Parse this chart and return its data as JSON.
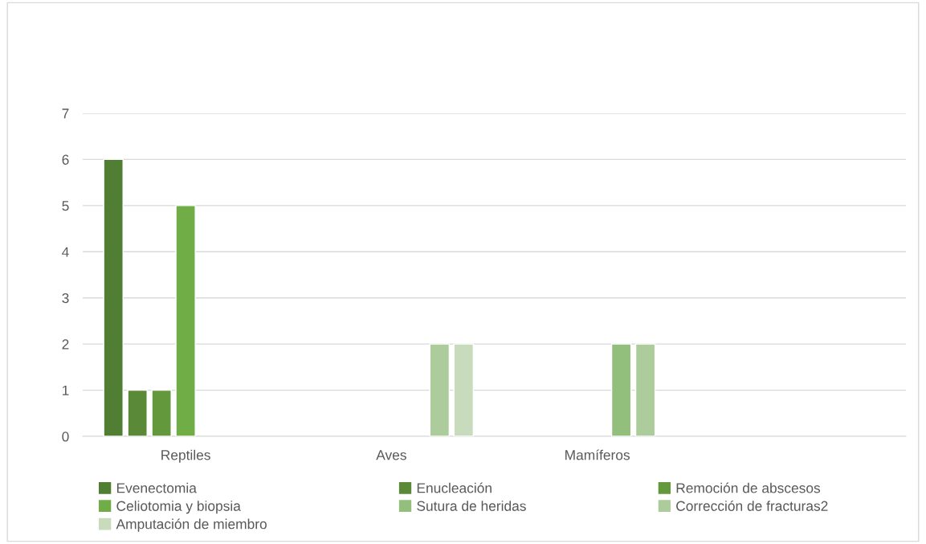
{
  "chart_data": {
    "type": "bar",
    "categories": [
      "Reptiles",
      "Aves",
      "Mamíferos",
      null
    ],
    "series": [
      {
        "name": "Evenectomia",
        "color": "#507e32",
        "values": [
          6,
          null,
          null,
          null
        ]
      },
      {
        "name": "Enucleación",
        "color": "#5a8a38",
        "values": [
          1,
          null,
          null,
          null
        ]
      },
      {
        "name": "Remoción de abscesos",
        "color": "#63983d",
        "values": [
          1,
          null,
          null,
          null
        ]
      },
      {
        "name": "Celiotomia y biopsia",
        "color": "#70ad47",
        "values": [
          5,
          null,
          null,
          null
        ]
      },
      {
        "name": "Sutura de heridas",
        "color": "#93bf7c",
        "values": [
          null,
          null,
          2,
          null
        ]
      },
      {
        "name": "Corrección de fracturas2",
        "color": "#adcc9c",
        "values": [
          null,
          2,
          2,
          null
        ]
      },
      {
        "name": "Amputación de miembro",
        "color": "#c8dcbd",
        "values": [
          null,
          2,
          null,
          null
        ]
      }
    ],
    "ylim": [
      0,
      7
    ],
    "yticks": [
      0,
      1,
      2,
      3,
      4,
      5,
      6,
      7
    ],
    "grid": "y",
    "legend": "bottom"
  }
}
